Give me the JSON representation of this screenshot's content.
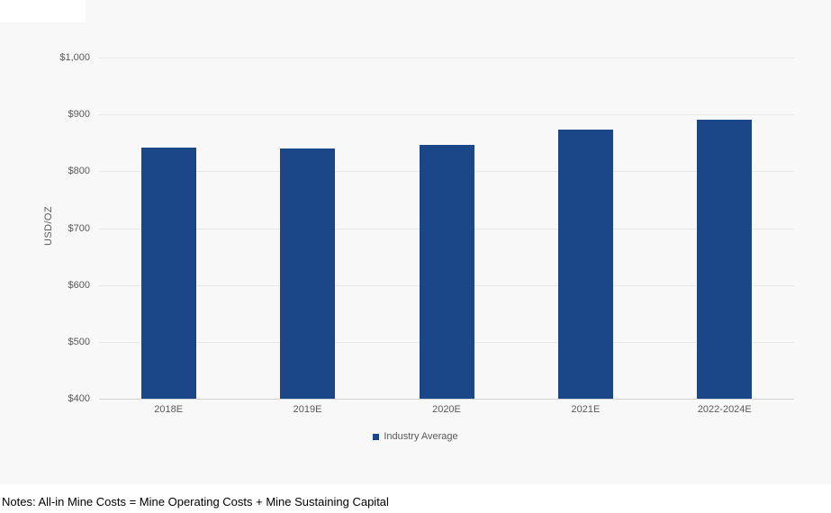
{
  "chart_data": {
    "type": "bar",
    "title": "",
    "categories": [
      "2018E",
      "2019E",
      "2020E",
      "2021E",
      "2022-2024E"
    ],
    "series": [
      {
        "name": "Industry Average",
        "values": [
          842,
          840,
          846,
          873,
          890
        ]
      }
    ],
    "xlabel": "",
    "ylabel": "USD/OZ",
    "ylim": [
      400,
      1000
    ],
    "yticks": [
      {
        "value": 400,
        "label": "$400"
      },
      {
        "value": 500,
        "label": "$500"
      },
      {
        "value": 600,
        "label": "$600"
      },
      {
        "value": 700,
        "label": "$700"
      },
      {
        "value": 800,
        "label": "$800"
      },
      {
        "value": 900,
        "label": "$900"
      },
      {
        "value": 1000,
        "label": "$1,000"
      }
    ],
    "grid": true,
    "legend_position": "bottom-center",
    "bar_color": "#1b4789"
  },
  "legend": {
    "label": "Industry Average"
  },
  "notes": "Notes: All-in Mine Costs = Mine Operating Costs + Mine Sustaining Capital",
  "colors": {
    "bar": "#1b4789",
    "background": "#f8f8f8",
    "gridline": "#e8e8e8",
    "axis_line": "#d2d2d2",
    "tick_text": "#595959",
    "notes_text": "#000000",
    "notes_background": "#ffffff"
  }
}
